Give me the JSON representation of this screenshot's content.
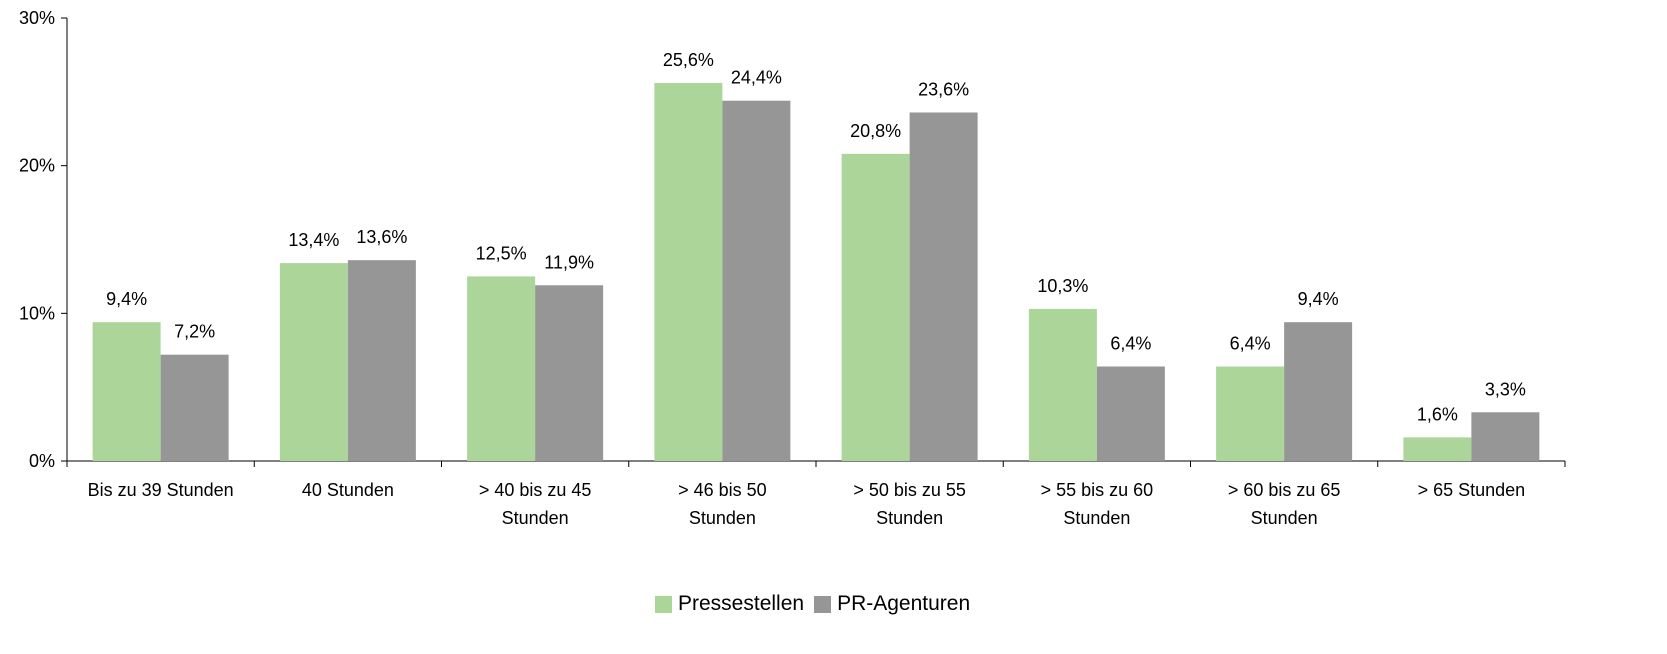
{
  "chart_data": {
    "type": "bar",
    "categories": [
      [
        "Bis zu 39 Stunden"
      ],
      [
        "40 Stunden"
      ],
      [
        "> 40 bis zu 45",
        "Stunden"
      ],
      [
        "> 46  bis 50",
        "Stunden"
      ],
      [
        "> 50 bis zu 55",
        "Stunden"
      ],
      [
        "> 55 bis zu 60",
        "Stunden"
      ],
      [
        "> 60 bis zu 65",
        "Stunden"
      ],
      [
        "> 65 Stunden"
      ]
    ],
    "series": [
      {
        "name": "Pressestellen",
        "color": "#acd59a",
        "values": [
          9.4,
          13.4,
          12.5,
          25.6,
          20.8,
          10.3,
          6.4,
          1.6
        ],
        "labels": [
          "9,4%",
          "13,4%",
          "12,5%",
          "25,6%",
          "20,8%",
          "10,3%",
          "6,4%",
          "1,6%"
        ]
      },
      {
        "name": "PR-Agenturen",
        "color": "#969696",
        "values": [
          7.2,
          13.6,
          11.9,
          24.4,
          23.6,
          6.4,
          9.4,
          3.3
        ],
        "labels": [
          "7,2%",
          "13,6%",
          "11,9%",
          "24,4%",
          "23,6%",
          "6,4%",
          "9,4%",
          "3,3%"
        ]
      }
    ],
    "ylim": [
      0,
      30
    ],
    "yticks": [
      0,
      10,
      20,
      30
    ],
    "ytick_labels": [
      "0%",
      "10%",
      "20%",
      "30%"
    ],
    "grid": false,
    "legend": "bottom-center"
  }
}
